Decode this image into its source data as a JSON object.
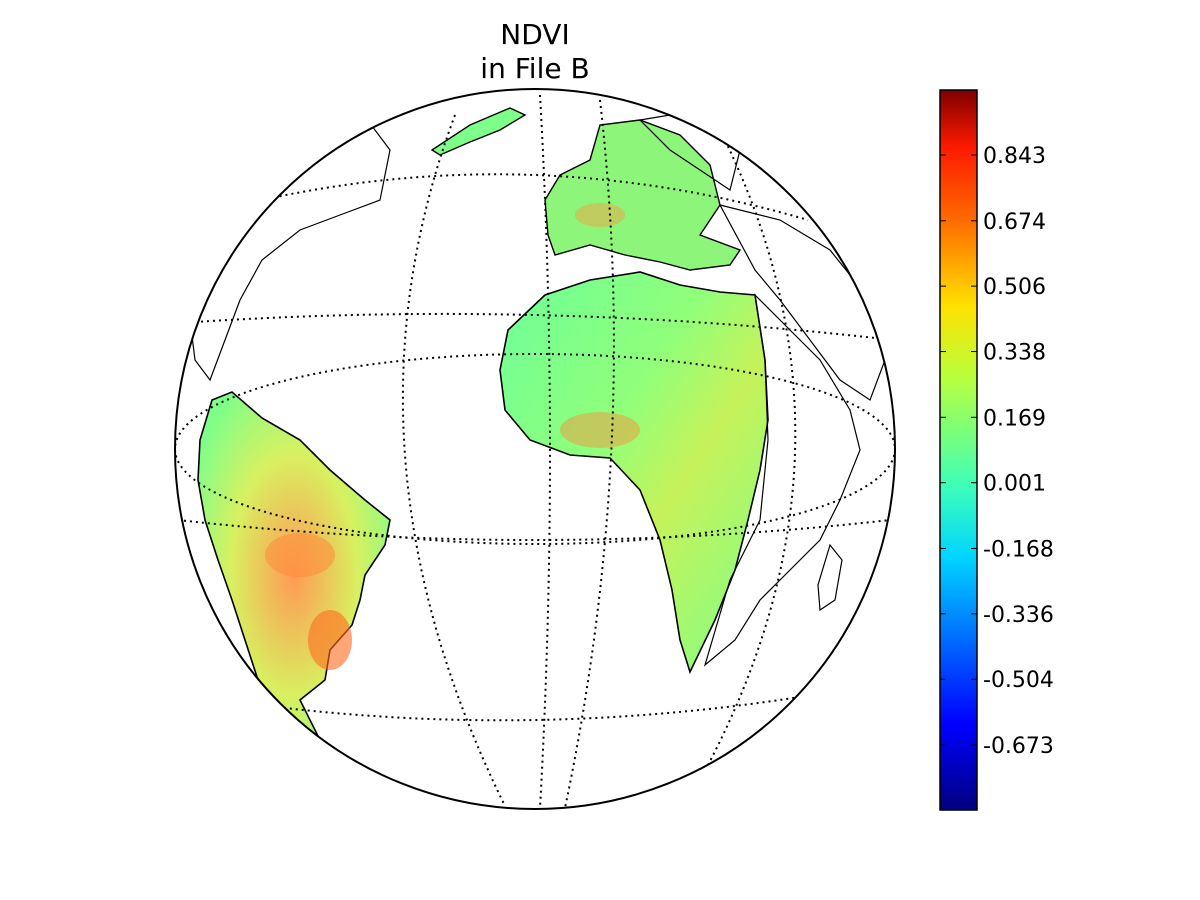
{
  "title": [
    "NDVI",
    "in File B"
  ],
  "colorbar": {
    "colormap": "jet",
    "range": [
      -0.84,
      1.01
    ],
    "tick_labels": [
      "0.843",
      "0.674",
      "0.506",
      "0.338",
      "0.169",
      "0.001",
      "-0.168",
      "-0.336",
      "-0.504",
      "-0.673"
    ],
    "tick_values": [
      0.843,
      0.674,
      0.506,
      0.338,
      0.169,
      0.001,
      -0.168,
      -0.336,
      -0.504,
      -0.673
    ]
  },
  "map": {
    "projection": "orthographic",
    "graticule": "dotted",
    "coastlines": true,
    "country_borders": true,
    "data_coverage": [
      "South America",
      "Africa (western swath)",
      "Europe"
    ],
    "colors": {
      "land_low": "#3dffb8",
      "land_mid": "#9cff5a",
      "land_high": "#ff9a2a",
      "outline": "#000000"
    }
  }
}
